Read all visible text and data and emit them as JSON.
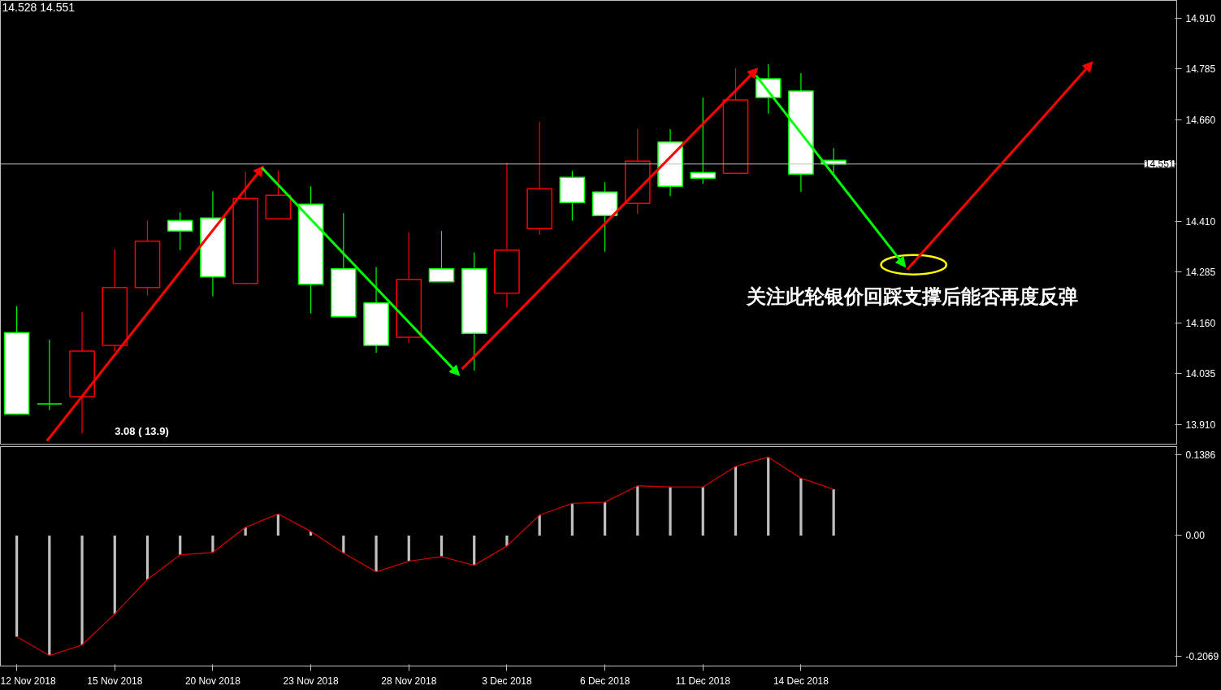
{
  "chart_data": [
    {
      "type": "candlestick",
      "ohlc": [
        [
          14.136,
          14.201,
          13.933,
          13.935
        ],
        [
          13.96,
          14.118,
          13.945,
          13.96
        ],
        [
          13.978,
          14.187,
          13.887,
          14.09
        ],
        [
          14.104,
          14.341,
          14.09,
          14.247
        ],
        [
          14.247,
          14.412,
          14.227,
          14.361
        ],
        [
          14.412,
          14.432,
          14.339,
          14.386
        ],
        [
          14.418,
          14.484,
          14.225,
          14.273
        ],
        [
          14.257,
          14.532,
          14.255,
          14.466
        ],
        [
          14.416,
          14.534,
          14.416,
          14.474
        ],
        [
          14.452,
          14.496,
          14.183,
          14.255
        ],
        [
          14.293,
          14.43,
          14.175,
          14.175
        ],
        [
          14.209,
          14.297,
          14.086,
          14.104
        ],
        [
          14.124,
          14.383,
          14.11,
          14.267
        ],
        [
          14.293,
          14.386,
          14.261,
          14.261
        ],
        [
          14.293,
          14.333,
          14.042,
          14.134
        ],
        [
          14.233,
          14.554,
          14.197,
          14.339
        ],
        [
          14.392,
          14.655,
          14.377,
          14.49
        ],
        [
          14.518,
          14.534,
          14.412,
          14.456
        ],
        [
          14.482,
          14.506,
          14.335,
          14.424
        ],
        [
          14.454,
          14.637,
          14.428,
          14.558
        ],
        [
          14.605,
          14.637,
          14.472,
          14.496
        ],
        [
          14.53,
          14.715,
          14.502,
          14.516
        ],
        [
          14.528,
          14.787,
          14.528,
          14.709
        ],
        [
          14.761,
          14.797,
          14.675,
          14.715
        ],
        [
          14.731,
          14.775,
          14.482,
          14.526
        ],
        [
          14.56,
          14.59,
          14.528,
          14.551
        ],
        null,
        null,
        null,
        null,
        null,
        null,
        null,
        null,
        null,
        null
      ],
      "colors": [
        "#00ff00",
        "#00ff00",
        "#ff0000",
        "#ff0000",
        "#ff0000",
        "#00ff00",
        "#00ff00",
        "#ff0000",
        "#ff0000",
        "#00ff00",
        "#00ff00",
        "#00ff00",
        "#ff0000",
        "#00ff00",
        "#00ff00",
        "#ff0000",
        "#ff0000",
        "#00ff00",
        "#00ff00",
        "#ff0000",
        "#00ff00",
        "#00ff00",
        "#ff0000",
        "#00ff00",
        "#00ff00",
        "#00ff00",
        null,
        null,
        null,
        null,
        null,
        null,
        null,
        null,
        null,
        null
      ],
      "ylim": [
        13.859,
        14.954
      ],
      "yticks": [
        {
          "value": 14.91,
          "label": "14.910"
        },
        14.785,
        {
          "value": 14.66,
          "label": "14.660"
        },
        {
          "value": 14.41,
          "label": "14.410"
        },
        14.285,
        {
          "value": 14.16,
          "label": "14.160"
        },
        14.035,
        {
          "value": 13.91,
          "label": "13.910"
        }
      ],
      "ref_lines": [
        {
          "axis": "y",
          "value": 14.551,
          "label": "14.551",
          "color": "#c0c0c0"
        }
      ],
      "annotations": [
        "14.528 14.551",
        "3.08 ( 13.9)",
        "关注此轮银价回踩支撑后能否再度反弹"
      ],
      "tick_labels": "y"
    },
    {
      "type": "bar",
      "categories": [
        "12 Nov 2018",
        null,
        null,
        "15 Nov 2018",
        null,
        null,
        "20 Nov 2018",
        null,
        null,
        "23 Nov 2018",
        null,
        null,
        "28 Nov 2018",
        null,
        null,
        "3 Dec 2018",
        null,
        null,
        "6 Dec 2018",
        null,
        null,
        "11 Dec 2018",
        null,
        null,
        "14 Dec 2018",
        null,
        null,
        null,
        null,
        null,
        null,
        null,
        null,
        null,
        null,
        null
      ],
      "series": [
        {
          "type": "bar",
          "color": "#c0c0c0",
          "values": [
            -0.173,
            -0.205,
            -0.187,
            -0.134,
            -0.075,
            -0.033,
            -0.029,
            0.014,
            0.037,
            0.007,
            -0.03,
            -0.062,
            -0.044,
            -0.036,
            -0.051,
            -0.018,
            0.035,
            0.055,
            0.057,
            0.085,
            0.083,
            0.083,
            0.118,
            0.134,
            0.098,
            0.079,
            null,
            null,
            null,
            null,
            null,
            null,
            null,
            null,
            null,
            null
          ]
        },
        {
          "type": "line",
          "color": "#cc0000",
          "values": [
            -0.173,
            -0.205,
            -0.187,
            -0.134,
            -0.075,
            -0.033,
            -0.029,
            0.014,
            0.037,
            0.007,
            -0.03,
            -0.062,
            -0.044,
            -0.036,
            -0.051,
            -0.018,
            0.035,
            0.055,
            0.057,
            0.085,
            0.083,
            0.083,
            0.118,
            0.134,
            0.098,
            0.079,
            null,
            null,
            null,
            null,
            null,
            null,
            null,
            null,
            null,
            null
          ]
        }
      ],
      "ylim": [
        -0.223,
        0.152
      ],
      "yticks": [
        {
          "value": 0.1386,
          "label": "0.1386"
        },
        {
          "value": 0,
          "label": "0.00"
        },
        {
          "value": -0.2069,
          "label": "-0.2069"
        }
      ]
    }
  ]
}
